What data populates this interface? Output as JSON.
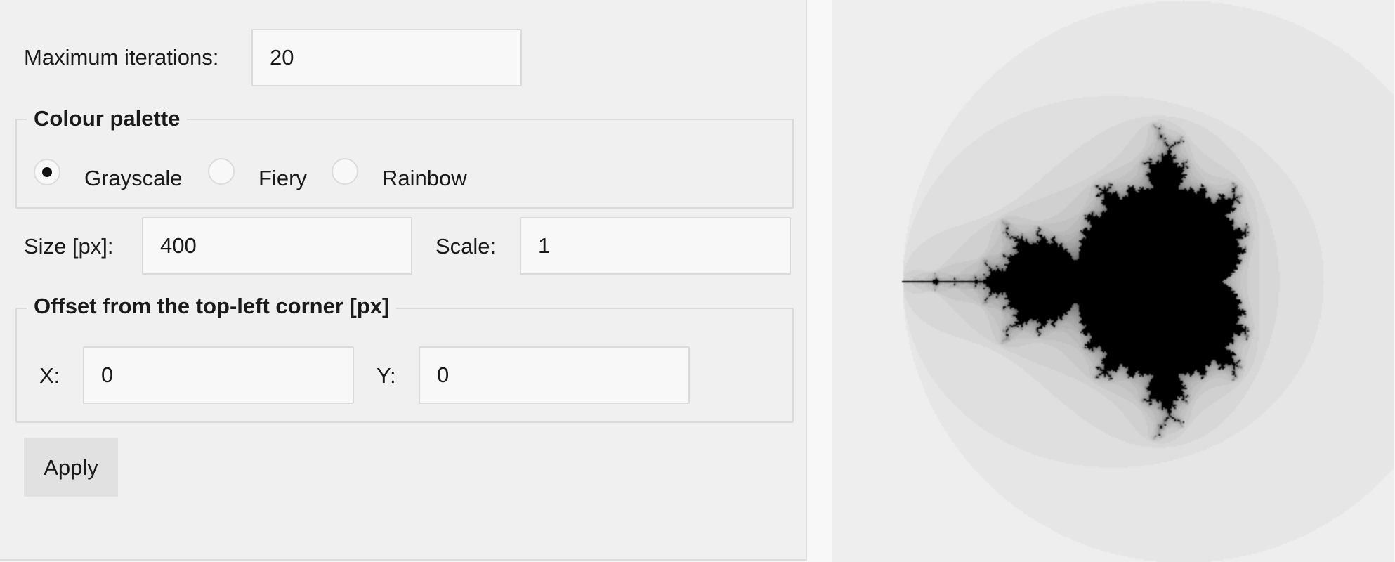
{
  "form": {
    "max_iterations": {
      "label": "Maximum iterations:",
      "value": "20"
    },
    "palette": {
      "legend": "Colour palette",
      "options": [
        {
          "label": "Grayscale",
          "checked": true
        },
        {
          "label": "Fiery",
          "checked": false
        },
        {
          "label": "Rainbow",
          "checked": false
        }
      ]
    },
    "size": {
      "label": "Size [px]:",
      "value": "400"
    },
    "scale": {
      "label": "Scale:",
      "value": "1"
    },
    "offset": {
      "legend": "Offset from the top-left corner [px]",
      "x": {
        "label": "X:",
        "value": "0"
      },
      "y": {
        "label": "Y:",
        "value": "0"
      }
    },
    "apply_label": "Apply"
  },
  "render": {
    "palette": "grayscale",
    "max_iterations": 20
  }
}
